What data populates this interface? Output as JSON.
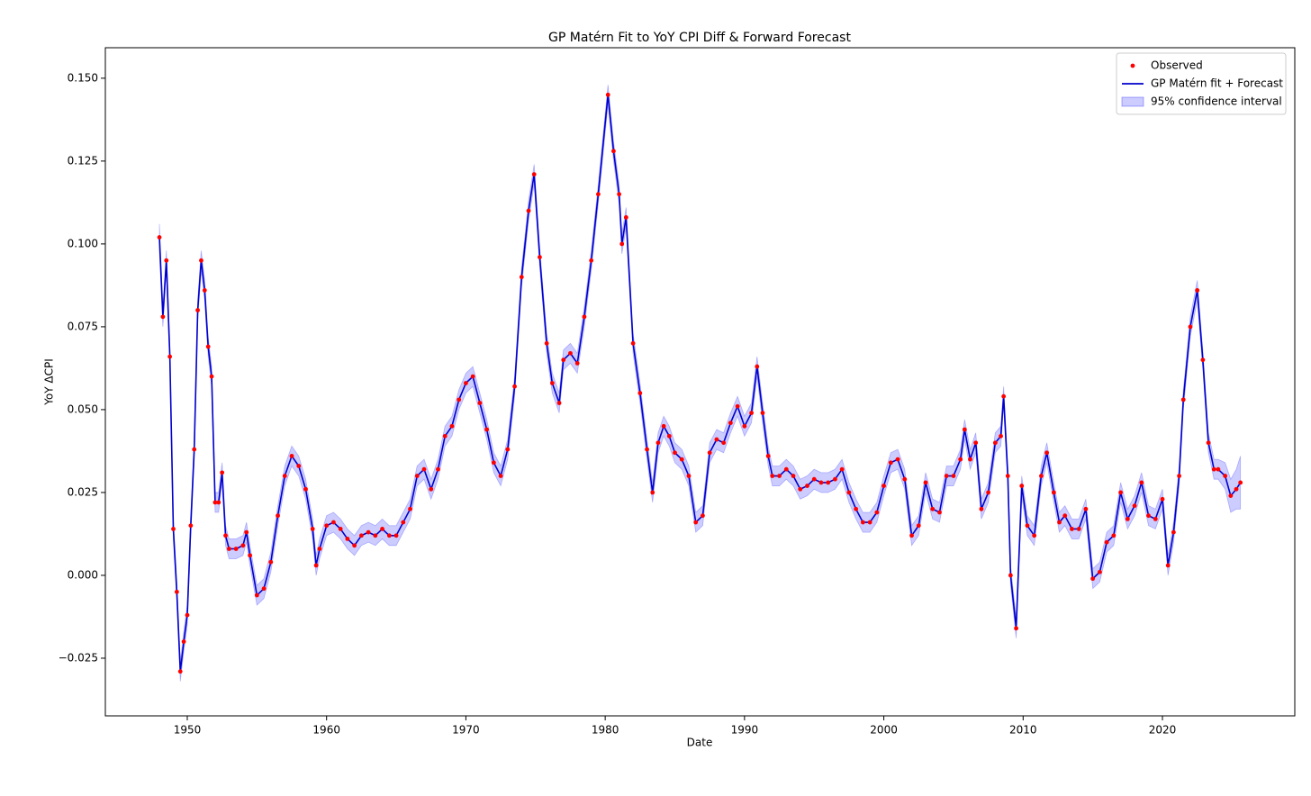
{
  "chart_data": {
    "type": "line",
    "title": "GP Matérn Fit to YoY CPI Diff & Forward Forecast",
    "xlabel": "Date",
    "ylabel": "YoY ΔCPI",
    "xlim": [
      1944.12,
      2029.5
    ],
    "ylim": [
      -0.0424,
      0.1592
    ],
    "xticks": [
      1950,
      1960,
      1970,
      1980,
      1990,
      2000,
      2010,
      2020
    ],
    "yticks": [
      {
        "value": -0.025,
        "label": "−0.025"
      },
      {
        "value": 0,
        "label": "0.000"
      },
      {
        "value": 0.025,
        "label": "0.025"
      },
      {
        "value": 0.05,
        "label": "0.050"
      },
      {
        "value": 0.075,
        "label": "0.075"
      },
      {
        "value": 0.1,
        "label": "0.100"
      },
      {
        "value": 0.125,
        "label": "0.125"
      },
      {
        "value": 0.15,
        "label": "0.150"
      }
    ],
    "legend": "upper right",
    "x": [
      1948.0,
      1948.25,
      1948.5,
      1948.75,
      1949.0,
      1949.25,
      1949.5,
      1949.75,
      1950.0,
      1950.25,
      1950.5,
      1950.75,
      1951.0,
      1951.25,
      1951.5,
      1951.75,
      1952.0,
      1952.25,
      1952.5,
      1952.75,
      1953.0,
      1953.5,
      1954.0,
      1954.25,
      1954.5,
      1955.0,
      1955.5,
      1956.0,
      1956.5,
      1957.0,
      1957.5,
      1958.0,
      1958.5,
      1959.0,
      1959.25,
      1959.5,
      1960.0,
      1960.5,
      1961.0,
      1961.5,
      1962.0,
      1962.5,
      1963.0,
      1963.5,
      1964.0,
      1964.5,
      1965.0,
      1965.5,
      1966.0,
      1966.5,
      1967.0,
      1967.5,
      1968.0,
      1968.5,
      1969.0,
      1969.5,
      1970.0,
      1970.5,
      1971.0,
      1971.5,
      1972.0,
      1972.5,
      1973.0,
      1973.5,
      1974.0,
      1974.5,
      1974.9,
      1975.3,
      1975.8,
      1976.2,
      1976.7,
      1977.0,
      1977.5,
      1978.0,
      1978.5,
      1979.0,
      1979.5,
      1980.2,
      1980.6,
      1981.0,
      1981.2,
      1981.5,
      1982.0,
      1982.5,
      1983.0,
      1983.4,
      1983.8,
      1984.2,
      1984.6,
      1985.0,
      1985.5,
      1986.0,
      1986.5,
      1987.0,
      1987.5,
      1988.0,
      1988.5,
      1989.0,
      1989.5,
      1990.0,
      1990.5,
      1990.9,
      1991.3,
      1991.7,
      1992.0,
      1992.5,
      1993.0,
      1993.5,
      1994.0,
      1994.5,
      1995.0,
      1995.5,
      1996.0,
      1996.5,
      1997.0,
      1997.5,
      1998.0,
      1998.5,
      1999.0,
      1999.5,
      2000.0,
      2000.5,
      2001.0,
      2001.5,
      2002.0,
      2002.5,
      2003.0,
      2003.5,
      2004.0,
      2004.5,
      2005.0,
      2005.5,
      2005.8,
      2006.2,
      2006.6,
      2007.0,
      2007.5,
      2008.0,
      2008.4,
      2008.6,
      2008.9,
      2009.1,
      2009.5,
      2009.9,
      2010.3,
      2010.8,
      2011.3,
      2011.7,
      2012.2,
      2012.6,
      2013.0,
      2013.5,
      2014.0,
      2014.5,
      2015.0,
      2015.5,
      2016.0,
      2016.5,
      2017.0,
      2017.5,
      2018.0,
      2018.5,
      2019.0,
      2019.5,
      2020.0,
      2020.4,
      2020.8,
      2021.2,
      2021.5,
      2022.0,
      2022.5,
      2022.9,
      2023.3,
      2023.7,
      2024.0,
      2024.5,
      2024.9,
      2025.3,
      2025.6
    ],
    "series": [
      {
        "name": "Observed",
        "color": "#ff0000",
        "marker": "dot",
        "values": [
          0.102,
          0.078,
          0.095,
          0.066,
          0.014,
          -0.005,
          -0.029,
          -0.02,
          -0.012,
          0.015,
          0.038,
          0.08,
          0.095,
          0.086,
          0.069,
          0.06,
          0.022,
          0.022,
          0.031,
          0.012,
          0.008,
          0.008,
          0.009,
          0.013,
          0.006,
          -0.006,
          -0.004,
          0.004,
          0.018,
          0.03,
          0.036,
          0.033,
          0.026,
          0.014,
          0.003,
          0.008,
          0.015,
          0.016,
          0.014,
          0.011,
          0.009,
          0.012,
          0.013,
          0.012,
          0.014,
          0.012,
          0.012,
          0.016,
          0.02,
          0.03,
          0.032,
          0.026,
          0.032,
          0.042,
          0.045,
          0.053,
          0.058,
          0.06,
          0.052,
          0.044,
          0.034,
          0.03,
          0.038,
          0.057,
          0.09,
          0.11,
          0.121,
          0.096,
          0.07,
          0.058,
          0.052,
          0.065,
          0.067,
          0.064,
          0.078,
          0.095,
          0.115,
          0.145,
          0.128,
          0.115,
          0.1,
          0.108,
          0.07,
          0.055,
          0.038,
          0.025,
          0.04,
          0.045,
          0.042,
          0.037,
          0.035,
          0.03,
          0.016,
          0.018,
          0.037,
          0.041,
          0.04,
          0.046,
          0.051,
          0.045,
          0.049,
          0.063,
          0.049,
          0.036,
          0.03,
          0.03,
          0.032,
          0.03,
          0.026,
          0.027,
          0.029,
          0.028,
          0.028,
          0.029,
          0.032,
          0.025,
          0.02,
          0.016,
          0.016,
          0.019,
          0.027,
          0.034,
          0.035,
          0.029,
          0.012,
          0.015,
          0.028,
          0.02,
          0.019,
          0.03,
          0.03,
          0.035,
          0.044,
          0.035,
          0.04,
          0.02,
          0.025,
          0.04,
          0.042,
          0.054,
          0.03,
          0.0,
          -0.016,
          0.027,
          0.015,
          0.012,
          0.03,
          0.037,
          0.025,
          0.016,
          0.018,
          0.014,
          0.014,
          0.02,
          -0.001,
          0.001,
          0.01,
          0.012,
          0.025,
          0.017,
          0.021,
          0.028,
          0.018,
          0.017,
          0.023,
          0.003,
          0.013,
          0.03,
          0.053,
          0.075,
          0.086,
          0.065,
          0.04,
          0.032,
          0.032,
          0.03,
          0.024,
          0.026,
          0.028
        ]
      },
      {
        "name": "GP Matérn fit + Forecast",
        "color": "#0000cc",
        "marker": "line",
        "values": [
          0.102,
          0.078,
          0.095,
          0.066,
          0.014,
          -0.005,
          -0.029,
          -0.02,
          -0.012,
          0.015,
          0.038,
          0.08,
          0.095,
          0.086,
          0.069,
          0.06,
          0.022,
          0.022,
          0.031,
          0.012,
          0.008,
          0.008,
          0.009,
          0.013,
          0.006,
          -0.006,
          -0.004,
          0.004,
          0.018,
          0.03,
          0.036,
          0.033,
          0.026,
          0.014,
          0.003,
          0.008,
          0.015,
          0.016,
          0.014,
          0.011,
          0.009,
          0.012,
          0.013,
          0.012,
          0.014,
          0.012,
          0.012,
          0.016,
          0.02,
          0.03,
          0.032,
          0.026,
          0.032,
          0.042,
          0.045,
          0.053,
          0.058,
          0.06,
          0.052,
          0.044,
          0.034,
          0.03,
          0.038,
          0.057,
          0.09,
          0.11,
          0.121,
          0.096,
          0.07,
          0.058,
          0.052,
          0.065,
          0.067,
          0.064,
          0.078,
          0.095,
          0.115,
          0.145,
          0.128,
          0.115,
          0.1,
          0.108,
          0.07,
          0.055,
          0.038,
          0.025,
          0.04,
          0.045,
          0.042,
          0.037,
          0.035,
          0.03,
          0.016,
          0.018,
          0.037,
          0.041,
          0.04,
          0.046,
          0.051,
          0.045,
          0.049,
          0.063,
          0.049,
          0.036,
          0.03,
          0.03,
          0.032,
          0.03,
          0.026,
          0.027,
          0.029,
          0.028,
          0.028,
          0.029,
          0.032,
          0.025,
          0.02,
          0.016,
          0.016,
          0.019,
          0.027,
          0.034,
          0.035,
          0.029,
          0.012,
          0.015,
          0.028,
          0.02,
          0.019,
          0.03,
          0.03,
          0.035,
          0.044,
          0.035,
          0.04,
          0.02,
          0.025,
          0.04,
          0.042,
          0.054,
          0.03,
          0.0,
          -0.016,
          0.027,
          0.015,
          0.012,
          0.03,
          0.037,
          0.025,
          0.016,
          0.018,
          0.014,
          0.014,
          0.02,
          -0.001,
          0.001,
          0.01,
          0.012,
          0.025,
          0.017,
          0.021,
          0.028,
          0.018,
          0.017,
          0.023,
          0.003,
          0.013,
          0.03,
          0.053,
          0.075,
          0.086,
          0.065,
          0.04,
          0.032,
          0.032,
          0.03,
          0.024,
          0.026,
          0.028
        ]
      }
    ],
    "band": {
      "name": "95% confidence interval",
      "color": "#0000ff",
      "errors": [
        0.004,
        0.003,
        0.003,
        0.003,
        0.003,
        0.003,
        0.003,
        0.003,
        0.003,
        0.003,
        0.003,
        0.003,
        0.003,
        0.003,
        0.003,
        0.003,
        0.003,
        0.003,
        0.003,
        0.003,
        0.003,
        0.003,
        0.003,
        0.003,
        0.003,
        0.003,
        0.003,
        0.003,
        0.003,
        0.003,
        0.003,
        0.003,
        0.003,
        0.003,
        0.003,
        0.003,
        0.003,
        0.003,
        0.003,
        0.003,
        0.003,
        0.003,
        0.003,
        0.003,
        0.003,
        0.003,
        0.003,
        0.003,
        0.003,
        0.003,
        0.003,
        0.003,
        0.003,
        0.003,
        0.003,
        0.003,
        0.003,
        0.003,
        0.003,
        0.003,
        0.003,
        0.003,
        0.003,
        0.003,
        0.003,
        0.003,
        0.003,
        0.003,
        0.003,
        0.003,
        0.003,
        0.003,
        0.003,
        0.003,
        0.003,
        0.003,
        0.003,
        0.003,
        0.003,
        0.003,
        0.003,
        0.003,
        0.003,
        0.003,
        0.003,
        0.003,
        0.003,
        0.003,
        0.003,
        0.003,
        0.003,
        0.003,
        0.003,
        0.003,
        0.003,
        0.003,
        0.003,
        0.003,
        0.003,
        0.003,
        0.003,
        0.003,
        0.003,
        0.003,
        0.003,
        0.003,
        0.003,
        0.003,
        0.003,
        0.003,
        0.003,
        0.003,
        0.003,
        0.003,
        0.003,
        0.003,
        0.003,
        0.003,
        0.003,
        0.003,
        0.003,
        0.003,
        0.003,
        0.003,
        0.003,
        0.003,
        0.003,
        0.003,
        0.003,
        0.003,
        0.003,
        0.003,
        0.003,
        0.003,
        0.003,
        0.003,
        0.003,
        0.003,
        0.003,
        0.003,
        0.003,
        0.003,
        0.003,
        0.003,
        0.003,
        0.003,
        0.003,
        0.003,
        0.003,
        0.003,
        0.003,
        0.003,
        0.003,
        0.003,
        0.003,
        0.003,
        0.003,
        0.003,
        0.003,
        0.003,
        0.003,
        0.003,
        0.003,
        0.003,
        0.003,
        0.003,
        0.003,
        0.003,
        0.003,
        0.003,
        0.003,
        0.003,
        0.003,
        0.003,
        0.003,
        0.004,
        0.005,
        0.006,
        0.008
      ]
    }
  }
}
